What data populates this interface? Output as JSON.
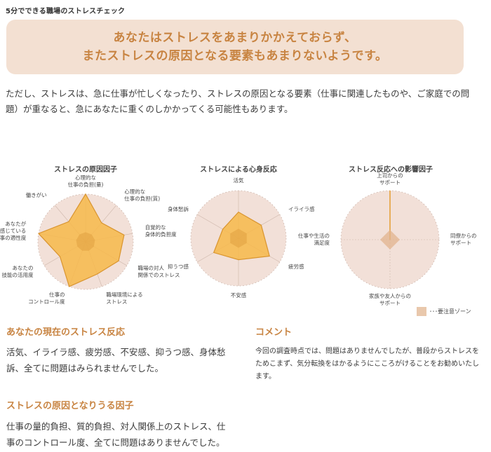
{
  "page": {
    "title": "5分でできる職場のストレスチェック"
  },
  "summary": {
    "line1": "あなたはストレスをあまりかかえておらず、",
    "line2": "またストレスの原因となる要素もあまりないようです。",
    "bg_color": "#f3e0d2",
    "text_color": "#c88442"
  },
  "intro": {
    "text": "ただし、ストレスは、急に仕事が忙しくなったり、ストレスの原因となる要素（仕事に関連したものや、ご家庭での問題）が重なると、急にあなたに重くのしかかってくる可能性もあります。"
  },
  "legend": {
    "label": "･･･要注意ゾーン",
    "swatch_color": "#e9c8ac"
  },
  "sections": {
    "reaction": {
      "heading": "あなたの現在のストレス反応",
      "body": "活気、イライラ感、疲労感、不安感、抑うつ感、身体愁訴、全てに問題はみられませんでした。"
    },
    "causes": {
      "heading": "ストレスの原因となりうる因子",
      "body": "仕事の量的負担、質的負担、対人関係上のストレス、仕事のコントロール度、全てに問題はありませんでした。"
    },
    "comment": {
      "heading": "コメント",
      "body": "今回の調査時点では、問題はありませんでしたが、普段からストレスをためこまず、気分転換をはかるようにこころがけることをお勧めいたします。"
    }
  },
  "chart_data": [
    {
      "type": "radar",
      "title": "ストレスの原因因子",
      "axes": [
        [
          "心理的な",
          "仕事の負担(量)"
        ],
        [
          "心理的な",
          "仕事の負担(質)"
        ],
        [
          "自覚的な",
          "身体的負担度"
        ],
        [
          "職場の対人",
          "関係でのストレス"
        ],
        [
          "職場環境による",
          "ストレス"
        ],
        [
          "仕事の",
          "コントロール度"
        ],
        [
          "あなたの",
          "技能の活用度"
        ],
        [
          "あなたが",
          "感じている",
          "仕事の適性度"
        ],
        [
          "働きがい"
        ]
      ],
      "values": [
        1.0,
        0.52,
        0.82,
        0.8,
        0.72,
        1.0,
        0.62,
        1.0,
        0.55
      ],
      "caution_zone": 0.2,
      "range": [
        0,
        1
      ]
    },
    {
      "type": "radar",
      "title": "ストレスによる心身反応",
      "axes": [
        [
          "活気"
        ],
        [
          "イライラ感"
        ],
        [
          "疲労感"
        ],
        [
          "不安感"
        ],
        [
          "抑うつ感"
        ],
        [
          "身体愁訴"
        ]
      ],
      "values": [
        0.55,
        0.55,
        0.75,
        0.45,
        0.6,
        0.38
      ],
      "caution_zone": 0.2,
      "range": [
        0,
        1
      ]
    },
    {
      "type": "radar",
      "title": "ストレス反応への影響因子",
      "axes": [
        [
          "上司からの",
          "サポート"
        ],
        [
          "同僚からの",
          "サポート"
        ],
        [
          "家族や友人からの",
          "サポート"
        ],
        [
          "仕事や生活の",
          "満足度"
        ]
      ],
      "values": [
        1.0,
        0.0,
        0.0,
        0.0
      ],
      "caution_zone": 0.2,
      "range": [
        0,
        1
      ]
    }
  ]
}
